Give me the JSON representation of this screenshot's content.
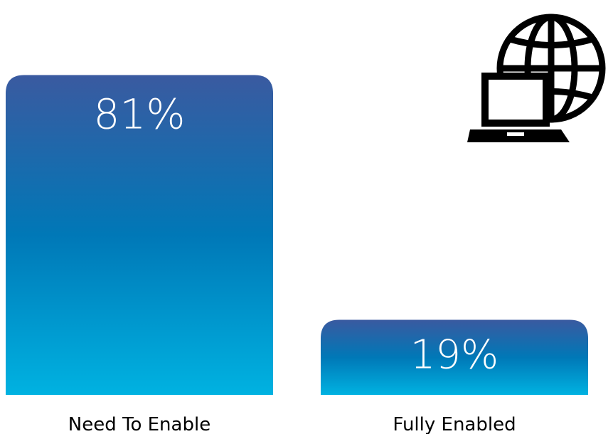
{
  "chart_data": {
    "type": "bar",
    "categories": [
      "Need To Enable",
      "Fully Enabled"
    ],
    "values": [
      81,
      19
    ],
    "value_labels": [
      "81%",
      "19%"
    ],
    "unit": "%",
    "ylim": [
      0,
      100
    ],
    "grid": false,
    "legend": "none",
    "colors": {
      "bar_top": "#3a5aa0",
      "bar_middle": "#0078b7",
      "bar_bottom": "#00b2e1",
      "value_text": "#ffffff",
      "label_text": "#000000"
    }
  },
  "icon": {
    "name": "laptop-globe-icon"
  }
}
